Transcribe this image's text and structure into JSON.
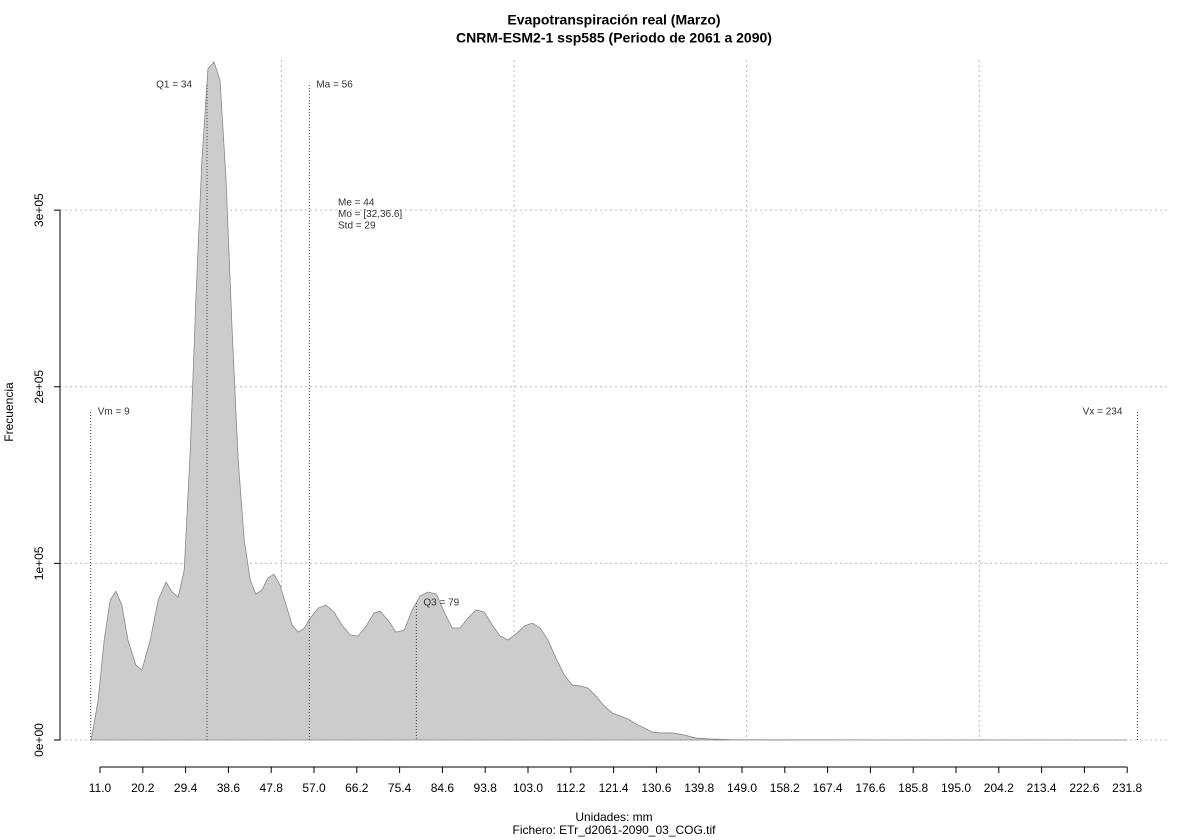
{
  "chart_data": {
    "type": "area",
    "title": "Evapotranspiración real (Marzo)",
    "subtitle": "CNRM-ESM2-1 ssp585 (Periodo de 2061 a 2090)",
    "xlabel": "Unidades: mm",
    "ylabel": "Frecuencia",
    "caption": "Fichero: ETr_d2061-2090_03_COG.tif",
    "color": "#cccccc",
    "line_color": "#888888",
    "grid": true,
    "x": [
      9.1,
      10.6,
      11.9,
      13.2,
      14.4,
      15.7,
      17.0,
      18.7,
      20.0,
      21.8,
      23.5,
      25.2,
      26.5,
      27.8,
      29.1,
      30.4,
      31.6,
      32.9,
      34.2,
      35.5,
      36.8,
      38.1,
      39.4,
      40.7,
      42.0,
      43.3,
      44.5,
      45.8,
      47.1,
      48.4,
      49.7,
      51.0,
      52.3,
      53.6,
      54.9,
      56.2,
      57.9,
      59.6,
      61.3,
      63.0,
      64.8,
      66.5,
      68.2,
      69.9,
      71.2,
      72.9,
      74.6,
      76.4,
      78.1,
      79.8,
      81.5,
      83.3,
      85.0,
      86.7,
      88.4,
      90.1,
      91.8,
      93.6,
      95.3,
      97.0,
      98.7,
      100.4,
      102.2,
      103.9,
      105.6,
      107.3,
      109.0,
      110.8,
      112.5,
      114.2,
      115.9,
      117.6,
      119.4,
      121.1,
      122.8,
      124.5,
      126.2,
      128.0,
      129.7,
      131.4,
      134.0,
      136.6,
      139.1,
      142.2,
      146.5,
      150.8,
      231.8
    ],
    "values": [
      0,
      22600,
      56600,
      79200,
      84300,
      76400,
      56600,
      42400,
      39600,
      56600,
      79200,
      89400,
      83800,
      80900,
      96200,
      164100,
      249000,
      328200,
      380000,
      384000,
      373500,
      316900,
      232000,
      158500,
      113200,
      90500,
      82600,
      84900,
      91700,
      93900,
      87700,
      76400,
      65100,
      61100,
      63400,
      69000,
      74700,
      76400,
      72400,
      65100,
      59400,
      58900,
      64500,
      71900,
      73000,
      67900,
      61100,
      62200,
      73600,
      81500,
      83800,
      82600,
      72400,
      63400,
      63400,
      69000,
      73600,
      72400,
      65100,
      58900,
      56600,
      60000,
      64500,
      66200,
      63400,
      56600,
      46400,
      36800,
      31100,
      30600,
      29400,
      24900,
      19200,
      15300,
      13600,
      11900,
      9100,
      6800,
      4500,
      4000,
      4000,
      2800,
      1100,
      600,
      200,
      100,
      0
    ],
    "xlim": [
      2.4,
      241.0
    ],
    "ylim": [
      0,
      385000
    ],
    "xticks": [
      {
        "value": 11,
        "label": "11.0"
      },
      20.2,
      29.4,
      38.6,
      47.8,
      {
        "value": 57,
        "label": "57.0"
      },
      66.2,
      75.4,
      84.6,
      93.8,
      {
        "value": 103,
        "label": "103.0"
      },
      112.2,
      121.4,
      130.6,
      139.8,
      {
        "value": 149,
        "label": "149.0"
      },
      158.2,
      167.4,
      176.6,
      185.8,
      {
        "value": 195,
        "label": "195.0"
      },
      204.2,
      213.4,
      222.6,
      231.8
    ],
    "yticks": [
      {
        "value": 0,
        "label": "0e+00"
      },
      {
        "value": 100000,
        "label": "1e+05"
      },
      {
        "value": 200000,
        "label": "2e+05"
      },
      {
        "value": 300000,
        "label": "3e+05"
      }
    ],
    "xgrid": [
      50,
      100,
      150,
      200
    ],
    "markers": [
      {
        "label": "Vm = 9",
        "value": 9
      },
      {
        "label": "Q1 = 34",
        "value": 34
      },
      {
        "label": "Ma = 56",
        "value": 56
      },
      {
        "label": "Q3 = 79",
        "value": 79
      },
      {
        "label": "Vx = 234",
        "value": 234
      }
    ],
    "stats": [
      "Me = 44",
      "Mo = [32,36.6]",
      "Std = 29"
    ]
  }
}
